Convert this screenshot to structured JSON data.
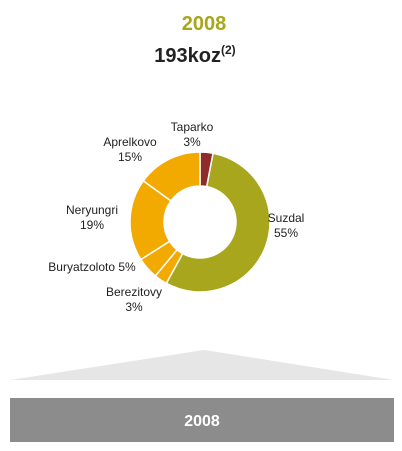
{
  "chart_data": {
    "type": "donut",
    "title": "2008",
    "subtitle": "193koz",
    "subtitle_note": "(2)",
    "categories": [
      "Taparko",
      "Suzdal",
      "Berezitovy",
      "Buryatzoloto",
      "Neryungri",
      "Aprelkovo"
    ],
    "values": [
      3,
      55,
      3,
      5,
      19,
      15
    ],
    "value_labels": [
      "3%",
      "55%",
      "3%",
      "5%",
      "19%",
      "15%"
    ],
    "colors": [
      "#8e2b2b",
      "#a8a61c",
      "#f2a900",
      "#f2a900",
      "#f2a900",
      "#f2a900"
    ],
    "footer_label": "2008"
  }
}
